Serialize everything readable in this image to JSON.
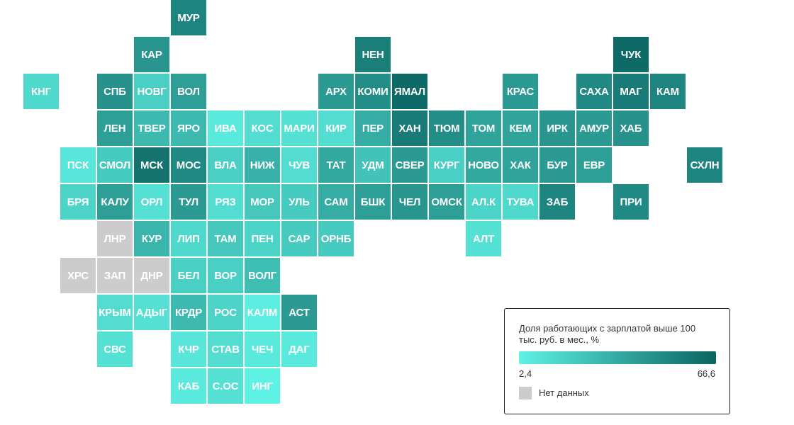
{
  "map": {
    "cell_size": 52,
    "tile_size": 50,
    "origin_x": 33,
    "origin_y": 0,
    "tiles": [
      {
        "code": "МУР",
        "col": 4,
        "row": 0,
        "v": 52
      },
      {
        "code": "КАР",
        "col": 3,
        "row": 1,
        "v": 44
      },
      {
        "code": "НЕН",
        "col": 9,
        "row": 1,
        "v": 55
      },
      {
        "code": "ЧУК",
        "col": 16,
        "row": 1,
        "v": 64
      },
      {
        "code": "КНГ",
        "col": 0,
        "row": 2,
        "v": 14
      },
      {
        "code": "СПБ",
        "col": 2,
        "row": 2,
        "v": 46
      },
      {
        "code": "НОВГ",
        "col": 3,
        "row": 2,
        "v": 18
      },
      {
        "code": "ВОЛ",
        "col": 4,
        "row": 2,
        "v": 40
      },
      {
        "code": "АРХ",
        "col": 8,
        "row": 2,
        "v": 42
      },
      {
        "code": "КОМИ",
        "col": 9,
        "row": 2,
        "v": 48
      },
      {
        "code": "ЯМАЛ",
        "col": 10,
        "row": 2,
        "v": 64
      },
      {
        "code": "КРАС",
        "col": 13,
        "row": 2,
        "v": 42
      },
      {
        "code": "САХА",
        "col": 15,
        "row": 2,
        "v": 50
      },
      {
        "code": "МАГ",
        "col": 16,
        "row": 2,
        "v": 56
      },
      {
        "code": "КАМ",
        "col": 17,
        "row": 2,
        "v": 52
      },
      {
        "code": "ЛЕН",
        "col": 2,
        "row": 3,
        "v": 40
      },
      {
        "code": "ТВЕР",
        "col": 3,
        "row": 3,
        "v": 28
      },
      {
        "code": "ЯРО",
        "col": 4,
        "row": 3,
        "v": 28
      },
      {
        "code": "ИВА",
        "col": 5,
        "row": 3,
        "v": 6
      },
      {
        "code": "КОС",
        "col": 6,
        "row": 3,
        "v": 12
      },
      {
        "code": "МАРИ",
        "col": 7,
        "row": 3,
        "v": 10
      },
      {
        "code": "КИР",
        "col": 8,
        "row": 3,
        "v": 12
      },
      {
        "code": "ПЕР",
        "col": 9,
        "row": 3,
        "v": 34
      },
      {
        "code": "ХАН",
        "col": 10,
        "row": 3,
        "v": 56
      },
      {
        "code": "ТЮМ",
        "col": 11,
        "row": 3,
        "v": 48
      },
      {
        "code": "ТОМ",
        "col": 12,
        "row": 3,
        "v": 38
      },
      {
        "code": "КЕМ",
        "col": 13,
        "row": 3,
        "v": 38
      },
      {
        "code": "ИРК",
        "col": 14,
        "row": 3,
        "v": 44
      },
      {
        "code": "АМУР",
        "col": 15,
        "row": 3,
        "v": 42
      },
      {
        "code": "ХАБ",
        "col": 16,
        "row": 3,
        "v": 46
      },
      {
        "code": "ПСК",
        "col": 1,
        "row": 4,
        "v": 8
      },
      {
        "code": "СМОЛ",
        "col": 2,
        "row": 4,
        "v": 20
      },
      {
        "code": "МСК",
        "col": 3,
        "row": 4,
        "v": 60
      },
      {
        "code": "МОС",
        "col": 4,
        "row": 4,
        "v": 50
      },
      {
        "code": "ВЛА",
        "col": 5,
        "row": 4,
        "v": 18
      },
      {
        "code": "НИЖ",
        "col": 6,
        "row": 4,
        "v": 32
      },
      {
        "code": "ЧУВ",
        "col": 7,
        "row": 4,
        "v": 12
      },
      {
        "code": "ТАТ",
        "col": 8,
        "row": 4,
        "v": 36
      },
      {
        "code": "УДМ",
        "col": 9,
        "row": 4,
        "v": 24
      },
      {
        "code": "СВЕР",
        "col": 10,
        "row": 4,
        "v": 42
      },
      {
        "code": "КУРГ",
        "col": 11,
        "row": 4,
        "v": 18
      },
      {
        "code": "НОВО",
        "col": 12,
        "row": 4,
        "v": 36
      },
      {
        "code": "ХАК",
        "col": 13,
        "row": 4,
        "v": 38
      },
      {
        "code": "БУР",
        "col": 14,
        "row": 4,
        "v": 42
      },
      {
        "code": "ЕВР",
        "col": 15,
        "row": 4,
        "v": 40
      },
      {
        "code": "СХЛН",
        "col": 18,
        "row": 4,
        "v": 52
      },
      {
        "code": "БРЯ",
        "col": 1,
        "row": 5,
        "v": 16
      },
      {
        "code": "КАЛУ",
        "col": 2,
        "row": 5,
        "v": 40
      },
      {
        "code": "ОРЛ",
        "col": 3,
        "row": 5,
        "v": 10
      },
      {
        "code": "ТУЛ",
        "col": 4,
        "row": 5,
        "v": 42
      },
      {
        "code": "РЯЗ",
        "col": 5,
        "row": 5,
        "v": 12
      },
      {
        "code": "МОР",
        "col": 6,
        "row": 5,
        "v": 22
      },
      {
        "code": "УЛЬ",
        "col": 7,
        "row": 5,
        "v": 20
      },
      {
        "code": "САМ",
        "col": 8,
        "row": 5,
        "v": 34
      },
      {
        "code": "БШК",
        "col": 9,
        "row": 5,
        "v": 40
      },
      {
        "code": "ЧЕЛ",
        "col": 10,
        "row": 5,
        "v": 44
      },
      {
        "code": "ОМСК",
        "col": 11,
        "row": 5,
        "v": 40
      },
      {
        "code": "АЛ.К",
        "col": 12,
        "row": 5,
        "v": 16
      },
      {
        "code": "ТУВА",
        "col": 13,
        "row": 5,
        "v": 14
      },
      {
        "code": "ЗАБ",
        "col": 14,
        "row": 5,
        "v": 52
      },
      {
        "code": "ПРИ",
        "col": 16,
        "row": 5,
        "v": 50
      },
      {
        "code": "ЛНР",
        "col": 2,
        "row": 6,
        "v": null
      },
      {
        "code": "КУР",
        "col": 3,
        "row": 6,
        "v": 30
      },
      {
        "code": "ЛИП",
        "col": 4,
        "row": 6,
        "v": 14
      },
      {
        "code": "ТАМ",
        "col": 5,
        "row": 6,
        "v": 22
      },
      {
        "code": "ПЕН",
        "col": 6,
        "row": 6,
        "v": 16
      },
      {
        "code": "САР",
        "col": 7,
        "row": 6,
        "v": 20
      },
      {
        "code": "ОРНБ",
        "col": 8,
        "row": 6,
        "v": 20
      },
      {
        "code": "АЛТ",
        "col": 12,
        "row": 6,
        "v": 10
      },
      {
        "code": "ХРС",
        "col": 1,
        "row": 7,
        "v": null
      },
      {
        "code": "ЗАП",
        "col": 2,
        "row": 7,
        "v": null
      },
      {
        "code": "ДНР",
        "col": 3,
        "row": 7,
        "v": null
      },
      {
        "code": "БЕЛ",
        "col": 4,
        "row": 7,
        "v": 18
      },
      {
        "code": "ВОР",
        "col": 5,
        "row": 7,
        "v": 18
      },
      {
        "code": "ВОЛГ",
        "col": 6,
        "row": 7,
        "v": 26
      },
      {
        "code": "КРЫМ",
        "col": 2,
        "row": 8,
        "v": 12
      },
      {
        "code": "АДЫГ",
        "col": 3,
        "row": 8,
        "v": 10
      },
      {
        "code": "КРДР",
        "col": 4,
        "row": 8,
        "v": 28
      },
      {
        "code": "РОС",
        "col": 5,
        "row": 8,
        "v": 16
      },
      {
        "code": "КАЛМ",
        "col": 6,
        "row": 8,
        "v": 4
      },
      {
        "code": "АСТ",
        "col": 7,
        "row": 8,
        "v": 42
      },
      {
        "code": "СВС",
        "col": 2,
        "row": 9,
        "v": 10
      },
      {
        "code": "КЧР",
        "col": 4,
        "row": 9,
        "v": 8
      },
      {
        "code": "СТАВ",
        "col": 5,
        "row": 9,
        "v": 12
      },
      {
        "code": "ЧЕЧ",
        "col": 6,
        "row": 9,
        "v": 6
      },
      {
        "code": "ДАГ",
        "col": 7,
        "row": 9,
        "v": 6
      },
      {
        "code": "КАБ",
        "col": 4,
        "row": 10,
        "v": 6
      },
      {
        "code": "С.ОС",
        "col": 5,
        "row": 10,
        "v": 10
      },
      {
        "code": "ИНГ",
        "col": 6,
        "row": 10,
        "v": 2.4
      }
    ]
  },
  "legend": {
    "title": "Доля работающих с зарплатой выше 100 тыс. руб. в мес., %",
    "min_label": "2,4",
    "max_label": "66,6",
    "na_label": "Нет данных"
  },
  "colors": {
    "scale_min": "#5ef2e4",
    "scale_max": "#0b6461",
    "no_data": "#cccccc",
    "tile_text": "#ffffff"
  },
  "scale": {
    "min": 2.4,
    "max": 66.6
  }
}
